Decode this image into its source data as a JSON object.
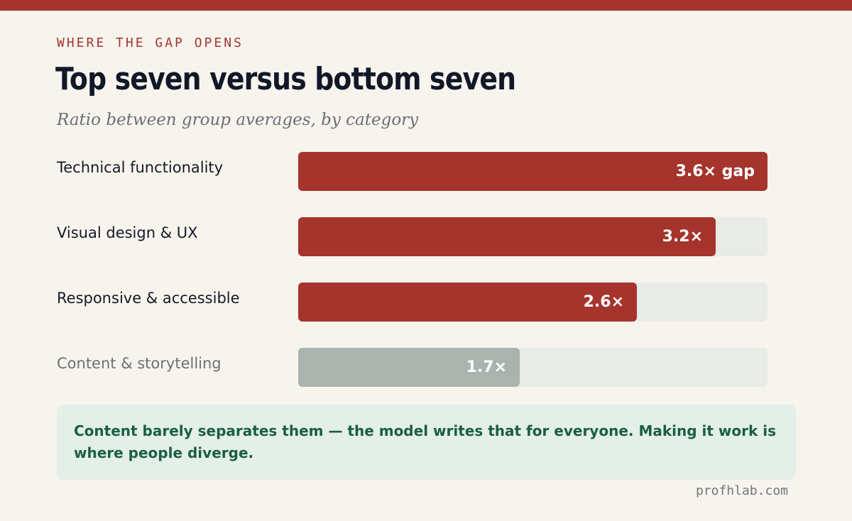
{
  "kicker": "WHERE THE GAP OPENS",
  "credit": "profhlab.com",
  "note": "Content barely separates them — the model writes that for everyone. Making it work is where people diverge.",
  "colors": {
    "accent": "#a5342d",
    "muted_bar": "#aab3ad",
    "track": "#e8ebe6",
    "note_bg": "#e3efe8",
    "note_text": "#1b5e46"
  },
  "chart_data": {
    "type": "bar",
    "orientation": "horizontal",
    "title": "Top seven versus bottom seven",
    "subtitle": "Ratio between group averages, by category",
    "categories": [
      "Technical functionality",
      "Visual design & UX",
      "Responsive & accessible",
      "Content & storytelling"
    ],
    "values": [
      3.6,
      3.2,
      2.6,
      1.7
    ],
    "value_labels": [
      "3.6× gap",
      "3.2×",
      "2.6×",
      "1.7×"
    ],
    "xlim": [
      0,
      3.6
    ],
    "highlighted": [
      true,
      true,
      true,
      false
    ],
    "grid": false
  }
}
